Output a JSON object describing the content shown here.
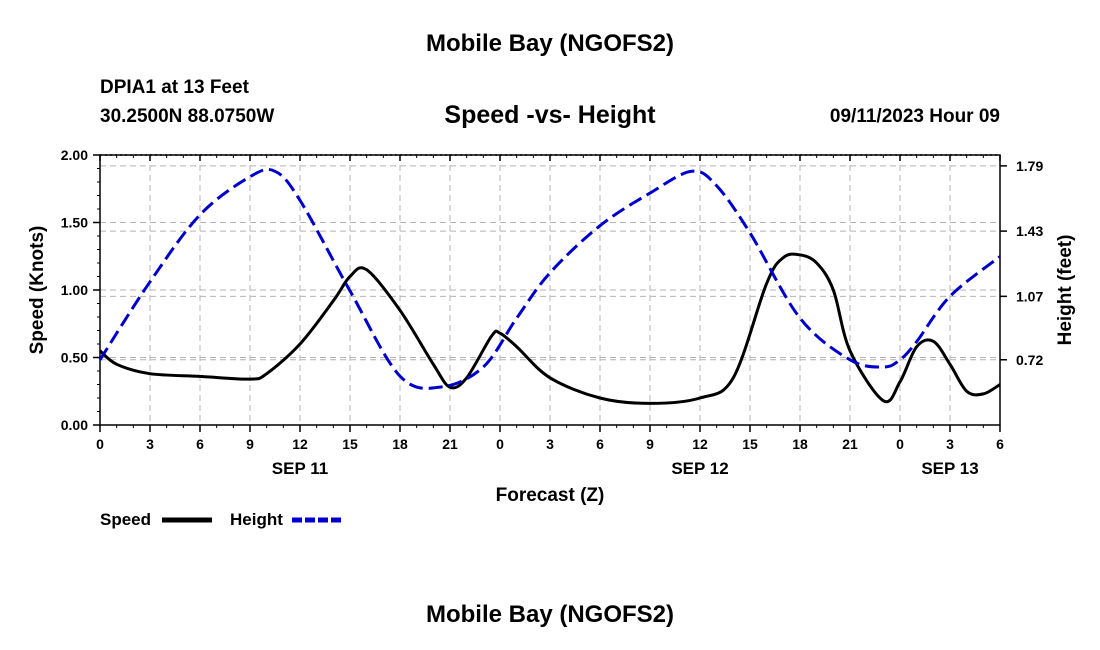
{
  "header": {
    "title": "Mobile Bay (NGOFS2)",
    "station": "DPIA1 at 13 Feet",
    "coords": "30.2500N  88.0750W",
    "subtitle": "Speed -vs- Height",
    "run_time": "09/11/2023 Hour 09"
  },
  "footer": {
    "title": "Mobile Bay (NGOFS2)"
  },
  "chart_data": {
    "type": "line",
    "title": "Speed -vs- Height",
    "xlabel": "Forecast (Z)",
    "ylabel": "Speed (Knots)",
    "y2label": "Height (feet)",
    "xlim": [
      0,
      54
    ],
    "ylim": [
      0,
      2.0
    ],
    "y2lim": [
      0.36,
      1.85
    ],
    "grid": true,
    "x_ticks": [
      0,
      3,
      6,
      9,
      12,
      15,
      18,
      21,
      24,
      27,
      30,
      33,
      36,
      39,
      42,
      45,
      48,
      51,
      54
    ],
    "x_tick_labels": [
      "0",
      "3",
      "6",
      "9",
      "12",
      "15",
      "18",
      "21",
      "0",
      "3",
      "6",
      "9",
      "12",
      "15",
      "18",
      "21",
      "0",
      "3",
      "6"
    ],
    "date_labels": [
      {
        "x": 12,
        "label": "SEP 11"
      },
      {
        "x": 36,
        "label": "SEP 12"
      },
      {
        "x": 51,
        "label": "SEP 13"
      }
    ],
    "y_ticks": [
      0,
      0.5,
      1.0,
      1.5,
      2.0
    ],
    "y_tick_labels": [
      "0.00",
      "0.50",
      "1.00",
      "1.50",
      "2.00"
    ],
    "y2_ticks": [
      0.72,
      1.07,
      1.43,
      1.79
    ],
    "y2_tick_labels": [
      "0.72",
      "1.07",
      "1.43",
      "1.79"
    ],
    "legend": {
      "position": "bottom-left",
      "speed_label": "Speed",
      "height_label": "Height"
    },
    "series": [
      {
        "name": "Speed",
        "axis": "left",
        "color": "#000000",
        "dash": "solid",
        "x": [
          0,
          1,
          3,
          6,
          9,
          10,
          12,
          14,
          15,
          16,
          18,
          20,
          21,
          22,
          23.5,
          24,
          25,
          27,
          30,
          33,
          36,
          38,
          40,
          41,
          42,
          43,
          44,
          45,
          47,
          48,
          49,
          50,
          51,
          52,
          53,
          54
        ],
        "values": [
          0.55,
          0.45,
          0.38,
          0.36,
          0.34,
          0.38,
          0.6,
          0.92,
          1.1,
          1.15,
          0.85,
          0.45,
          0.28,
          0.35,
          0.66,
          0.68,
          0.58,
          0.35,
          0.2,
          0.16,
          0.2,
          0.35,
          1.05,
          1.24,
          1.26,
          1.2,
          1.0,
          0.55,
          0.18,
          0.32,
          0.58,
          0.62,
          0.45,
          0.25,
          0.23,
          0.3
        ]
      },
      {
        "name": "Height",
        "axis": "right",
        "color": "#0000cc",
        "dash": "dashed",
        "x": [
          0,
          3,
          6,
          9,
          10.5,
          12,
          15,
          18,
          20.5,
          23,
          25,
          27,
          30,
          33,
          35.5,
          37,
          39,
          42,
          45,
          47,
          48,
          49,
          51,
          54
        ],
        "values": [
          0.72,
          1.15,
          1.52,
          1.73,
          1.76,
          1.6,
          1.1,
          0.63,
          0.57,
          0.68,
          0.95,
          1.2,
          1.46,
          1.64,
          1.76,
          1.68,
          1.42,
          0.95,
          0.72,
          0.68,
          0.72,
          0.82,
          1.07,
          1.29
        ]
      }
    ]
  }
}
